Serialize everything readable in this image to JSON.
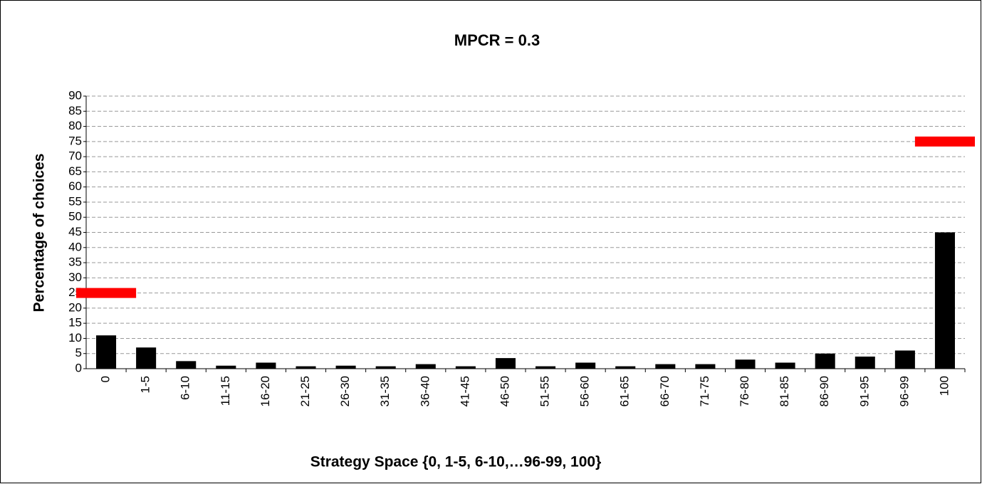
{
  "chart_data": {
    "type": "bar",
    "title": "MPCR = 0.3",
    "x_label": "Strategy Space {0, 1-5, 6-10,…96-99, 100}",
    "y_label": "Percentage of choices",
    "categories": [
      "0",
      "1-5",
      "6-10",
      "11-15",
      "16-20",
      "21-25",
      "26-30",
      "31-35",
      "36-40",
      "41-45",
      "46-50",
      "51-55",
      "56-60",
      "61-65",
      "66-70",
      "71-75",
      "76-80",
      "81-85",
      "86-90",
      "91-95",
      "96-99",
      "100"
    ],
    "values": [
      11,
      7,
      2.5,
      1,
      2,
      0.8,
      1,
      0.8,
      1.5,
      0.8,
      3.5,
      0.8,
      2,
      0.8,
      1.5,
      1.5,
      3,
      2,
      5,
      4,
      6,
      45
    ],
    "color": "#000000",
    "marker_values": [
      25,
      null,
      null,
      null,
      null,
      null,
      null,
      null,
      null,
      null,
      null,
      null,
      null,
      null,
      null,
      null,
      null,
      null,
      null,
      null,
      null,
      75
    ],
    "marker_color": "#ff0000",
    "ylim": [
      0,
      90
    ],
    "yticks": [
      0,
      5,
      10,
      15,
      20,
      25,
      30,
      35,
      40,
      45,
      50,
      55,
      60,
      65,
      70,
      75,
      80,
      85,
      90
    ],
    "grid": true
  }
}
